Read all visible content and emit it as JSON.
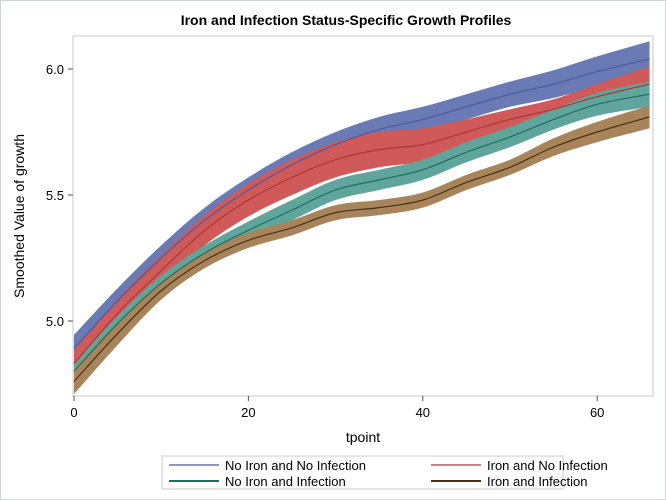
{
  "chart_data": {
    "type": "line",
    "title": "Iron and Infection Status-Specific Growth Profiles",
    "xlabel": "tpoint",
    "ylabel": "Smoothed Value of growth",
    "xlim": [
      0,
      66
    ],
    "ylim": [
      4.7,
      6.13
    ],
    "xticks": [
      0,
      20,
      40,
      60
    ],
    "yticks": [
      5.0,
      5.5,
      6.0
    ],
    "ytick_labels": [
      "5.0",
      "5.5",
      "6.0"
    ],
    "grid": false,
    "legend_position": "bottom",
    "x": [
      0,
      5,
      10,
      15,
      20,
      25,
      30,
      35,
      40,
      45,
      50,
      55,
      60,
      66
    ],
    "series": [
      {
        "name": "No Iron and No Infection",
        "line_color": "#4b5b9c",
        "band_color": "#6a7ab5",
        "values": [
          4.89,
          5.08,
          5.25,
          5.4,
          5.52,
          5.62,
          5.7,
          5.76,
          5.8,
          5.85,
          5.9,
          5.94,
          5.99,
          6.04
        ],
        "band_halfwidth": [
          0.055,
          0.05,
          0.05,
          0.05,
          0.05,
          0.05,
          0.05,
          0.05,
          0.05,
          0.05,
          0.05,
          0.055,
          0.06,
          0.07
        ]
      },
      {
        "name": "Iron and No Infection",
        "line_color": "#a83838",
        "band_color": "#d05a5a",
        "values": [
          4.83,
          5.03,
          5.2,
          5.36,
          5.48,
          5.57,
          5.64,
          5.68,
          5.7,
          5.75,
          5.8,
          5.84,
          5.89,
          5.94
        ],
        "band_halfwidth": [
          0.055,
          0.055,
          0.06,
          0.06,
          0.065,
          0.07,
          0.07,
          0.07,
          0.065,
          0.05,
          0.04,
          0.04,
          0.05,
          0.07
        ]
      },
      {
        "name": "No Iron and Infection",
        "line_color": "#1d6e62",
        "band_color": "#5fa59b",
        "values": [
          4.8,
          4.99,
          5.15,
          5.27,
          5.36,
          5.44,
          5.52,
          5.56,
          5.6,
          5.67,
          5.73,
          5.8,
          5.86,
          5.9
        ],
        "band_halfwidth": [
          0.03,
          0.03,
          0.03,
          0.03,
          0.035,
          0.04,
          0.04,
          0.04,
          0.04,
          0.04,
          0.04,
          0.04,
          0.045,
          0.05
        ]
      },
      {
        "name": "Iron and Infection",
        "line_color": "#4a2e14",
        "band_color": "#a8845a",
        "values": [
          4.76,
          4.95,
          5.12,
          5.24,
          5.32,
          5.37,
          5.43,
          5.45,
          5.48,
          5.55,
          5.61,
          5.69,
          5.75,
          5.81
        ],
        "band_halfwidth": [
          0.05,
          0.045,
          0.035,
          0.03,
          0.03,
          0.03,
          0.03,
          0.03,
          0.03,
          0.03,
          0.03,
          0.035,
          0.04,
          0.045
        ]
      }
    ]
  }
}
